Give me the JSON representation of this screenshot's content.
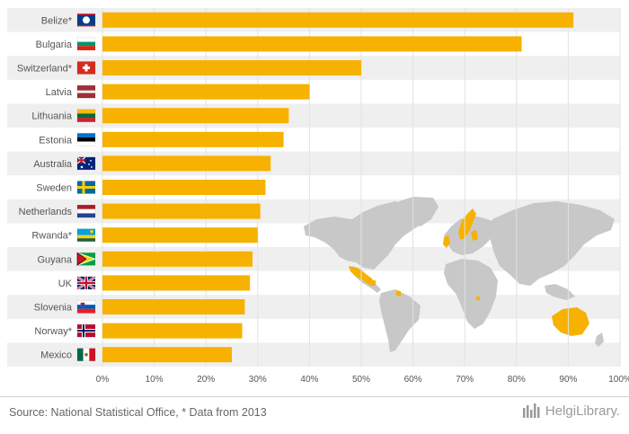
{
  "chart_data": {
    "type": "bar",
    "orientation": "horizontal",
    "categories": [
      "Belize*",
      "Bulgaria",
      "Switzerland*",
      "Latvia",
      "Lithuania",
      "Estonia",
      "Australia",
      "Sweden",
      "Netherlands",
      "Rwanda*",
      "Guyana",
      "UK",
      "Slovenia",
      "Norway*",
      "Mexico"
    ],
    "values": [
      91,
      81,
      50,
      40,
      36,
      35,
      32.5,
      31.5,
      30.5,
      30,
      29,
      28.5,
      27.5,
      27,
      25
    ],
    "xlim": [
      0,
      100
    ],
    "ticks": [
      "0%",
      "10%",
      "20%",
      "30%",
      "40%",
      "50%",
      "60%",
      "70%",
      "80%",
      "90%",
      "100%"
    ],
    "tick_values": [
      0,
      10,
      20,
      30,
      40,
      50,
      60,
      70,
      80,
      90,
      100
    ],
    "grid": true,
    "bar_color": "#F7B100",
    "stripe_color": "#EFEFEF",
    "map_land_color": "#C8C8C8",
    "map_highlight_color": "#F7B100",
    "flag_icons": [
      "belize-flag-icon",
      "bulgaria-flag-icon",
      "switzerland-flag-icon",
      "latvia-flag-icon",
      "lithuania-flag-icon",
      "estonia-flag-icon",
      "australia-flag-icon",
      "sweden-flag-icon",
      "netherlands-flag-icon",
      "rwanda-flag-icon",
      "guyana-flag-icon",
      "uk-flag-icon",
      "slovenia-flag-icon",
      "norway-flag-icon",
      "mexico-flag-icon"
    ]
  },
  "footer": {
    "source": "Source: National Statistical Office, * Data from 2013",
    "brand": "HelgiLibrary."
  }
}
